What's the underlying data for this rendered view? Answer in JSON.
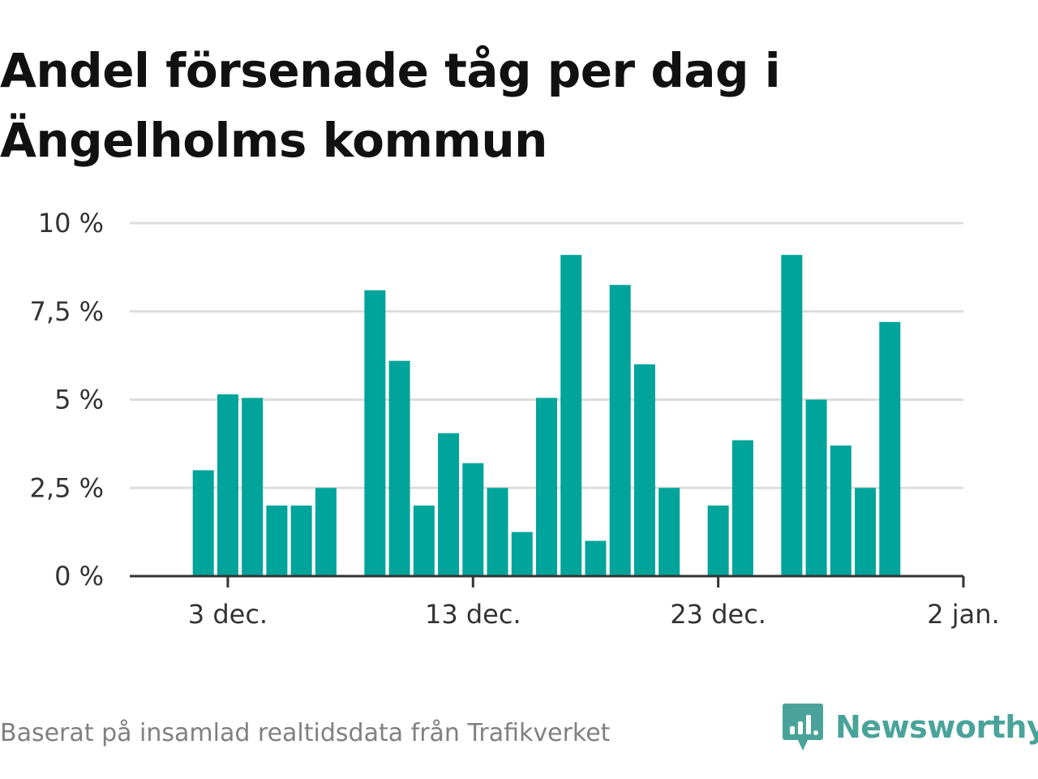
{
  "title": "Andel försenade tåg per dag i Ängelholms kommun",
  "source": "Baserat på insamlad realtidsdata från Trafikverket",
  "brand": {
    "name": "Newsworthy",
    "logo_icon": "bar-chart-speech-bubble-icon"
  },
  "colors": {
    "bar": "#00a49a",
    "grid": "#dddddd",
    "axis": "#333333",
    "brand": "#4aa39a"
  },
  "chart_data": {
    "type": "bar",
    "y_ticks": [
      "0 %",
      "2,5 %",
      "5 %",
      "7,5 %",
      "10 %"
    ],
    "ylim": [
      0,
      10
    ],
    "x_ticks": [
      {
        "label": "3 dec.",
        "date": "2019-12-03"
      },
      {
        "label": "13 dec.",
        "date": "2019-12-13"
      },
      {
        "label": "23 dec.",
        "date": "2019-12-23"
      },
      {
        "label": "2 jan.",
        "date": "2020-01-02"
      }
    ],
    "xlim": [
      "2019-11-29",
      "2020-01-02"
    ],
    "bars": [
      {
        "date": "2019-12-02",
        "value": 3.0
      },
      {
        "date": "2019-12-03",
        "value": 5.15
      },
      {
        "date": "2019-12-04",
        "value": 5.05
      },
      {
        "date": "2019-12-05",
        "value": 2.0
      },
      {
        "date": "2019-12-06",
        "value": 2.0
      },
      {
        "date": "2019-12-07",
        "value": 2.5
      },
      {
        "date": "2019-12-09",
        "value": 8.1
      },
      {
        "date": "2019-12-10",
        "value": 6.1
      },
      {
        "date": "2019-12-11",
        "value": 2.0
      },
      {
        "date": "2019-12-12",
        "value": 4.05
      },
      {
        "date": "2019-12-13",
        "value": 3.2
      },
      {
        "date": "2019-12-14",
        "value": 2.5
      },
      {
        "date": "2019-12-15",
        "value": 1.25
      },
      {
        "date": "2019-12-16",
        "value": 5.05
      },
      {
        "date": "2019-12-17",
        "value": 9.1
      },
      {
        "date": "2019-12-18",
        "value": 1.0
      },
      {
        "date": "2019-12-19",
        "value": 8.25
      },
      {
        "date": "2019-12-20",
        "value": 6.0
      },
      {
        "date": "2019-12-21",
        "value": 2.5
      },
      {
        "date": "2019-12-23",
        "value": 2.0
      },
      {
        "date": "2019-12-24",
        "value": 3.85
      },
      {
        "date": "2019-12-26",
        "value": 9.1
      },
      {
        "date": "2019-12-27",
        "value": 5.0
      },
      {
        "date": "2019-12-28",
        "value": 3.7
      },
      {
        "date": "2019-12-29",
        "value": 2.5
      },
      {
        "date": "2019-12-30",
        "value": 7.2
      }
    ]
  }
}
